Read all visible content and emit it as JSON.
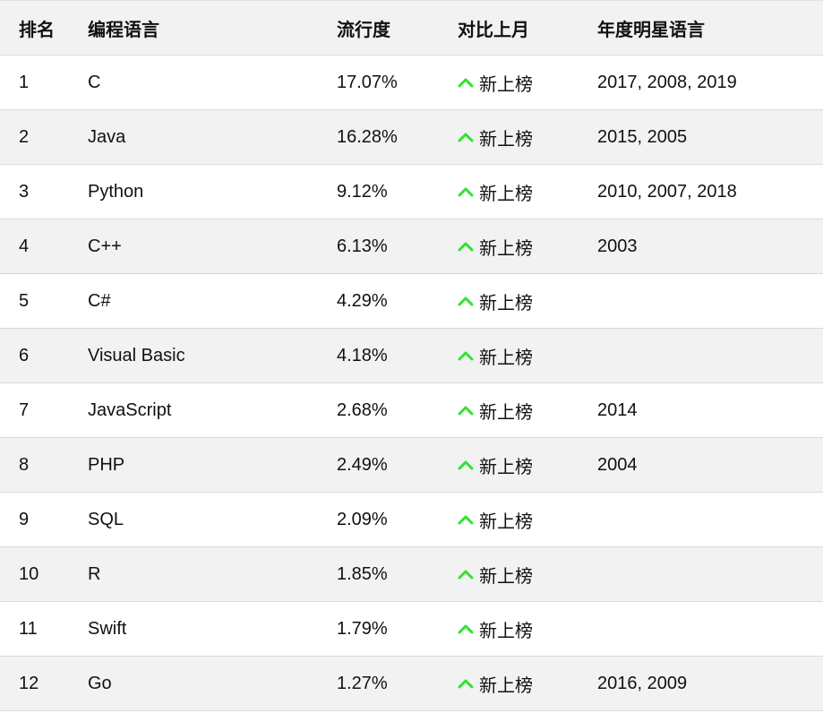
{
  "colors": {
    "up_arrow": "#2fe22f",
    "header_bg": "#f2f2f2",
    "alt_row_bg": "#f2f2f2",
    "border": "#d9d9d9"
  },
  "columns": {
    "rank": "排名",
    "language": "编程语言",
    "popularity": "流行度",
    "compare": "对比上月",
    "star_years": "年度明星语言"
  },
  "rows": [
    {
      "rank": "1",
      "language": "C",
      "popularity": "17.07%",
      "compare": "新上榜",
      "compare_icon": "up-arrow-icon",
      "star_years": "2017, 2008, 2019"
    },
    {
      "rank": "2",
      "language": "Java",
      "popularity": "16.28%",
      "compare": "新上榜",
      "compare_icon": "up-arrow-icon",
      "star_years": "2015, 2005"
    },
    {
      "rank": "3",
      "language": "Python",
      "popularity": "9.12%",
      "compare": "新上榜",
      "compare_icon": "up-arrow-icon",
      "star_years": "2010, 2007, 2018"
    },
    {
      "rank": "4",
      "language": "C++",
      "popularity": "6.13%",
      "compare": "新上榜",
      "compare_icon": "up-arrow-icon",
      "star_years": "2003"
    },
    {
      "rank": "5",
      "language": "C#",
      "popularity": "4.29%",
      "compare": "新上榜",
      "compare_icon": "up-arrow-icon",
      "star_years": ""
    },
    {
      "rank": "6",
      "language": "Visual Basic",
      "popularity": "4.18%",
      "compare": "新上榜",
      "compare_icon": "up-arrow-icon",
      "star_years": ""
    },
    {
      "rank": "7",
      "language": "JavaScript",
      "popularity": "2.68%",
      "compare": "新上榜",
      "compare_icon": "up-arrow-icon",
      "star_years": "2014"
    },
    {
      "rank": "8",
      "language": "PHP",
      "popularity": "2.49%",
      "compare": "新上榜",
      "compare_icon": "up-arrow-icon",
      "star_years": "2004"
    },
    {
      "rank": "9",
      "language": "SQL",
      "popularity": "2.09%",
      "compare": "新上榜",
      "compare_icon": "up-arrow-icon",
      "star_years": ""
    },
    {
      "rank": "10",
      "language": "R",
      "popularity": "1.85%",
      "compare": "新上榜",
      "compare_icon": "up-arrow-icon",
      "star_years": ""
    },
    {
      "rank": "11",
      "language": "Swift",
      "popularity": "1.79%",
      "compare": "新上榜",
      "compare_icon": "up-arrow-icon",
      "star_years": ""
    },
    {
      "rank": "12",
      "language": "Go",
      "popularity": "1.27%",
      "compare": "新上榜",
      "compare_icon": "up-arrow-icon",
      "star_years": "2016, 2009"
    }
  ]
}
